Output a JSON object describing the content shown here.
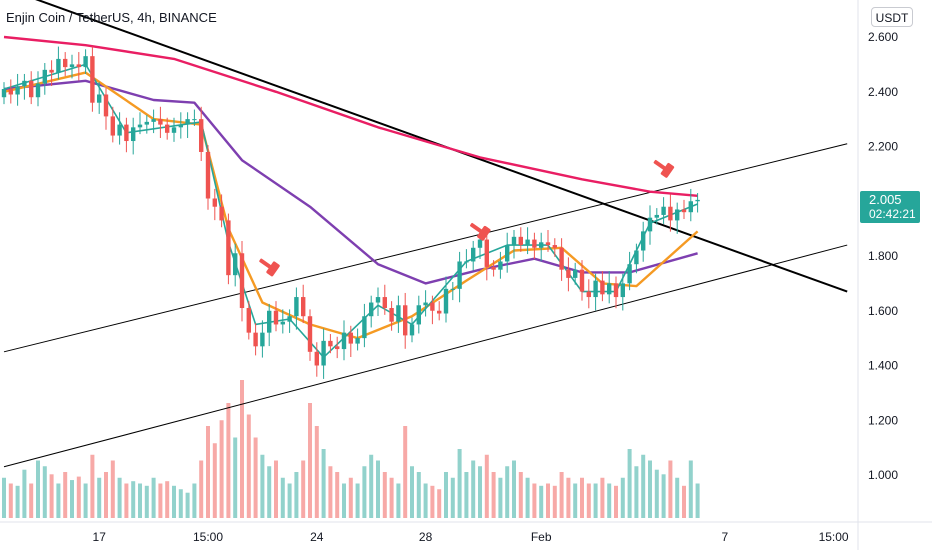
{
  "header": {
    "title": "Enjin Coin / TetherUS, 4h, BINANCE",
    "currency_badge": "USDT"
  },
  "price_tag": {
    "price": "2.005",
    "countdown": "02:42:21",
    "color": "#26a69a"
  },
  "colors": {
    "up": "#26a69a",
    "down": "#ef5350",
    "ma_fast": "#26a69a",
    "ma_orange": "#f59a23",
    "ma_purple": "#7e3fb0",
    "ma_red": "#e91e63",
    "trendline": "#000000"
  },
  "chart_data": {
    "type": "candlestick",
    "title": "Enjin Coin / TetherUS, 4h, BINANCE",
    "y_axis": {
      "ylim": [
        0.85,
        2.72
      ],
      "tick_labels": [
        "2.600",
        "2.400",
        "2.200",
        "2.000",
        "1.800",
        "1.600",
        "1.400",
        "1.200",
        "1.000"
      ],
      "tick_values": [
        2.6,
        2.4,
        2.2,
        2.0,
        1.8,
        1.6,
        1.4,
        1.2,
        1.0
      ]
    },
    "x_axis": {
      "tick_labels": [
        "17",
        "15:00",
        "24",
        "28",
        "Feb",
        "7",
        "15:00"
      ],
      "tick_index": [
        14,
        30,
        46,
        62,
        79,
        106,
        122
      ]
    },
    "close": [
      2.41,
      2.39,
      2.42,
      2.44,
      2.38,
      2.43,
      2.48,
      2.47,
      2.52,
      2.49,
      2.5,
      2.49,
      2.53,
      2.36,
      2.39,
      2.31,
      2.24,
      2.28,
      2.22,
      2.27,
      2.28,
      2.29,
      2.3,
      2.28,
      2.25,
      2.27,
      2.28,
      2.3,
      2.3,
      2.18,
      2.01,
      1.98,
      1.93,
      1.73,
      1.81,
      1.61,
      1.52,
      1.47,
      1.52,
      1.6,
      1.55,
      1.56,
      1.58,
      1.65,
      1.58,
      1.45,
      1.4,
      1.49,
      1.47,
      1.46,
      1.52,
      1.48,
      1.5,
      1.58,
      1.63,
      1.65,
      1.61,
      1.56,
      1.62,
      1.51,
      1.55,
      1.62,
      1.63,
      1.6,
      1.59,
      1.68,
      1.68,
      1.78,
      1.78,
      1.83,
      1.86,
      1.76,
      1.75,
      1.78,
      1.84,
      1.87,
      1.84,
      1.86,
      1.83,
      1.85,
      1.84,
      1.83,
      1.75,
      1.72,
      1.75,
      1.67,
      1.65,
      1.71,
      1.66,
      1.7,
      1.65,
      1.7,
      1.77,
      1.82,
      1.89,
      1.94,
      1.95,
      1.98,
      1.93,
      1.97,
      1.96,
      2.0,
      2.005
    ],
    "open": [
      2.38,
      2.41,
      2.39,
      2.42,
      2.44,
      2.38,
      2.43,
      2.48,
      2.47,
      2.52,
      2.49,
      2.5,
      2.49,
      2.53,
      2.36,
      2.39,
      2.31,
      2.24,
      2.28,
      2.22,
      2.27,
      2.28,
      2.29,
      2.3,
      2.28,
      2.25,
      2.27,
      2.28,
      2.3,
      2.3,
      2.18,
      2.01,
      1.98,
      1.93,
      1.73,
      1.81,
      1.61,
      1.52,
      1.47,
      1.52,
      1.6,
      1.55,
      1.56,
      1.58,
      1.65,
      1.58,
      1.45,
      1.4,
      1.49,
      1.47,
      1.46,
      1.52,
      1.48,
      1.5,
      1.58,
      1.63,
      1.65,
      1.61,
      1.56,
      1.62,
      1.51,
      1.55,
      1.62,
      1.63,
      1.6,
      1.59,
      1.68,
      1.68,
      1.78,
      1.78,
      1.83,
      1.86,
      1.76,
      1.75,
      1.78,
      1.84,
      1.87,
      1.84,
      1.86,
      1.83,
      1.85,
      1.84,
      1.83,
      1.75,
      1.72,
      1.75,
      1.67,
      1.65,
      1.71,
      1.66,
      1.7,
      1.65,
      1.7,
      1.77,
      1.82,
      1.89,
      1.94,
      1.95,
      1.98,
      1.93,
      1.97,
      1.96,
      2.0
    ],
    "volume": [
      0.35,
      0.3,
      0.28,
      0.42,
      0.3,
      0.5,
      0.45,
      0.38,
      0.3,
      0.4,
      0.33,
      0.36,
      0.3,
      0.55,
      0.35,
      0.4,
      0.5,
      0.35,
      0.3,
      0.32,
      0.3,
      0.28,
      0.35,
      0.3,
      0.32,
      0.28,
      0.25,
      0.22,
      0.3,
      0.5,
      0.8,
      0.65,
      0.85,
      1.0,
      0.7,
      1.2,
      0.9,
      0.7,
      0.55,
      0.45,
      0.5,
      0.35,
      0.3,
      0.4,
      0.5,
      1.0,
      0.8,
      0.6,
      0.45,
      0.4,
      0.3,
      0.35,
      0.3,
      0.45,
      0.55,
      0.5,
      0.4,
      0.35,
      0.3,
      0.8,
      0.45,
      0.4,
      0.3,
      0.28,
      0.25,
      0.4,
      0.35,
      0.6,
      0.4,
      0.5,
      0.45,
      0.55,
      0.4,
      0.35,
      0.45,
      0.5,
      0.4,
      0.35,
      0.3,
      0.28,
      0.3,
      0.28,
      0.4,
      0.35,
      0.3,
      0.35,
      0.3,
      0.3,
      0.35,
      0.3,
      0.28,
      0.35,
      0.6,
      0.45,
      0.55,
      0.5,
      0.42,
      0.38,
      0.5,
      0.35,
      0.28,
      0.5,
      0.3
    ],
    "moving_averages": [
      {
        "color": "#e91e63",
        "values_at": [
          [
            0,
            2.6
          ],
          [
            12,
            2.57
          ],
          [
            25,
            2.52
          ],
          [
            40,
            2.4
          ],
          [
            55,
            2.27
          ],
          [
            70,
            2.16
          ],
          [
            85,
            2.08
          ],
          [
            95,
            2.035
          ],
          [
            102,
            2.02
          ]
        ]
      },
      {
        "color": "#7e3fb0",
        "values_at": [
          [
            0,
            2.41
          ],
          [
            12,
            2.44
          ],
          [
            22,
            2.37
          ],
          [
            28,
            2.36
          ],
          [
            35,
            2.15
          ],
          [
            45,
            1.98
          ],
          [
            55,
            1.77
          ],
          [
            62,
            1.7
          ],
          [
            70,
            1.75
          ],
          [
            78,
            1.79
          ],
          [
            85,
            1.74
          ],
          [
            92,
            1.74
          ],
          [
            102,
            1.81
          ]
        ]
      },
      {
        "color": "#f59a23",
        "values_at": [
          [
            0,
            2.4
          ],
          [
            12,
            2.47
          ],
          [
            22,
            2.3
          ],
          [
            29,
            2.28
          ],
          [
            33,
            1.9
          ],
          [
            38,
            1.63
          ],
          [
            45,
            1.55
          ],
          [
            52,
            1.5
          ],
          [
            60,
            1.58
          ],
          [
            68,
            1.71
          ],
          [
            75,
            1.82
          ],
          [
            82,
            1.83
          ],
          [
            88,
            1.7
          ],
          [
            93,
            1.69
          ],
          [
            102,
            1.89
          ]
        ]
      },
      {
        "color": "#26a69a",
        "values_at": [
          [
            0,
            2.41
          ],
          [
            12,
            2.5
          ],
          [
            18,
            2.25
          ],
          [
            29,
            2.29
          ],
          [
            33,
            1.85
          ],
          [
            37,
            1.55
          ],
          [
            42,
            1.57
          ],
          [
            47,
            1.43
          ],
          [
            55,
            1.62
          ],
          [
            60,
            1.55
          ],
          [
            68,
            1.78
          ],
          [
            74,
            1.84
          ],
          [
            80,
            1.84
          ],
          [
            85,
            1.67
          ],
          [
            90,
            1.67
          ],
          [
            95,
            1.92
          ],
          [
            102,
            1.99
          ]
        ]
      }
    ],
    "trendlines": [
      {
        "color": "#000000",
        "width": 2,
        "p1": [
          0,
          2.78
        ],
        "p2": [
          124,
          1.67
        ]
      },
      {
        "color": "#000000",
        "width": 1,
        "p1": [
          0,
          1.45
        ],
        "p2": [
          124,
          2.21
        ]
      },
      {
        "color": "#000000",
        "width": 1,
        "p1": [
          0,
          1.03
        ],
        "p2": [
          124,
          1.84
        ]
      }
    ],
    "markers": [
      {
        "type": "hammer",
        "index": 38,
        "price": 1.78
      },
      {
        "type": "hammer",
        "index": 69,
        "price": 1.91
      },
      {
        "type": "hammer",
        "index": 96,
        "price": 2.14
      }
    ]
  }
}
